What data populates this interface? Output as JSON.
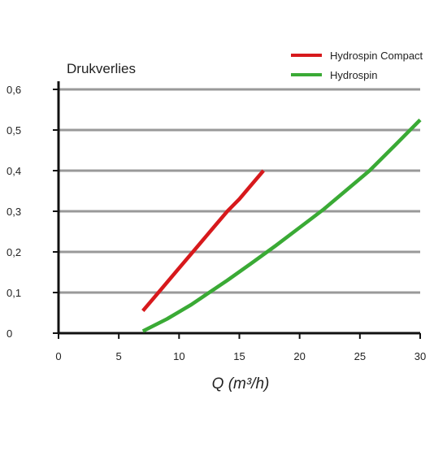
{
  "chart_data": {
    "type": "line",
    "ylabel": "Drukverlies",
    "xlabel": "Q (m³/h)",
    "xlim": [
      0,
      30
    ],
    "ylim": [
      0,
      0.6
    ],
    "x_ticks": [
      "0",
      "5",
      "10",
      "15",
      "20",
      "25",
      "30"
    ],
    "y_ticks": [
      "0",
      "0,1",
      "0,2",
      "0,3",
      "0,4",
      "0,5",
      "0,6"
    ],
    "grid": true,
    "legend_position": "top-right",
    "series": [
      {
        "name": "Hydrospin Compact",
        "color": "#d7191c",
        "x": [
          7,
          8,
          9,
          10,
          11,
          12,
          13,
          14,
          15,
          16,
          17
        ],
        "y": [
          0.055,
          0.09,
          0.125,
          0.16,
          0.195,
          0.23,
          0.265,
          0.3,
          0.33,
          0.365,
          0.4
        ]
      },
      {
        "name": "Hydrospin",
        "color": "#3aaa35",
        "x": [
          7,
          9,
          11,
          12.5,
          14,
          16,
          18,
          20,
          22,
          24,
          25.8,
          28,
          30
        ],
        "y": [
          0.005,
          0.035,
          0.07,
          0.1,
          0.13,
          0.172,
          0.215,
          0.26,
          0.305,
          0.355,
          0.4,
          0.465,
          0.525
        ]
      }
    ]
  }
}
